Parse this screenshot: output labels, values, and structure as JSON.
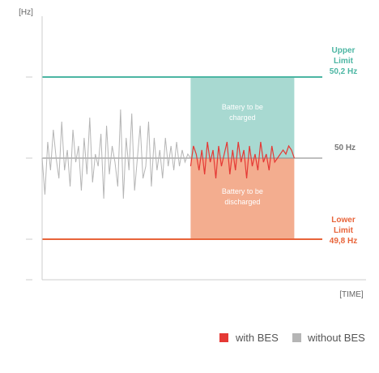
{
  "chart_data": {
    "type": "line",
    "ylabel": "[Hz]",
    "xlabel": "[TIME]",
    "ylim": [
      49.7,
      50.35
    ],
    "xlim": [
      0,
      100
    ],
    "reference_lines": {
      "upper": {
        "value": 50.2,
        "label_line1": "Upper",
        "label_line2": "Limit",
        "label_value": "50,2 Hz",
        "color": "#4cb6a3"
      },
      "nominal": {
        "value": 50.0,
        "label": "50 Hz",
        "color": "#999999"
      },
      "lower": {
        "value": 49.8,
        "label_line1": "Lower",
        "label_line2": "Limit",
        "label_value": "49,8 Hz",
        "color": "#e8643a"
      }
    },
    "bands": [
      {
        "name": "charge",
        "x_range": [
          53,
          90
        ],
        "y_range": [
          50.0,
          50.2
        ],
        "color": "#a8d9d1",
        "label_line1": "Battery to be",
        "label_line2": "charged"
      },
      {
        "name": "discharge",
        "x_range": [
          53,
          90
        ],
        "y_range": [
          49.8,
          50.0
        ],
        "color": "#f3ad8f",
        "label_line1": "Battery to be",
        "label_line2": "discharged"
      }
    ],
    "series": [
      {
        "name": "without BES",
        "color": "#b5b5b5",
        "x": [
          0,
          1,
          2,
          3,
          4,
          5,
          6,
          7,
          8,
          9,
          10,
          11,
          12,
          13,
          14,
          15,
          16,
          17,
          18,
          19,
          20,
          21,
          22,
          23,
          24,
          25,
          26,
          27,
          28,
          29,
          30,
          31,
          32,
          33,
          34,
          35,
          36,
          37,
          38,
          39,
          40,
          41,
          42,
          43,
          44,
          45,
          46,
          47,
          48,
          49,
          50,
          51,
          52,
          53
        ],
        "values": [
          50.0,
          49.91,
          50.04,
          49.97,
          50.07,
          50.0,
          49.95,
          50.09,
          49.97,
          50.02,
          49.93,
          50.07,
          49.99,
          50.03,
          49.92,
          50.05,
          49.96,
          50.1,
          49.94,
          50.01,
          49.98,
          50.06,
          49.9,
          50.08,
          49.96,
          50.03,
          49.99,
          49.93,
          50.12,
          49.9,
          50.05,
          49.97,
          50.11,
          49.92,
          50.0,
          50.08,
          49.95,
          49.98,
          50.09,
          49.93,
          50.05,
          49.97,
          50.02,
          49.95,
          50.05,
          49.98,
          50.03,
          49.97,
          50.04,
          49.98,
          50.02,
          49.99,
          50.01,
          50.0
        ]
      },
      {
        "name": "with BES",
        "color": "#e53935",
        "x": [
          53,
          54,
          55,
          56,
          57,
          58,
          59,
          60,
          61,
          62,
          63,
          64,
          65,
          66,
          67,
          68,
          69,
          70,
          71,
          72,
          73,
          74,
          75,
          76,
          77,
          78,
          79,
          80,
          81,
          82,
          83,
          84,
          85,
          86,
          87,
          88,
          89,
          90
        ],
        "values": [
          49.98,
          50.03,
          50.01,
          49.97,
          50.02,
          49.96,
          50.04,
          49.99,
          50.02,
          49.95,
          50.03,
          49.98,
          50.01,
          50.04,
          49.96,
          50.02,
          49.97,
          50.04,
          49.99,
          50.02,
          49.95,
          50.03,
          49.98,
          50.01,
          49.97,
          50.04,
          49.99,
          50.01,
          49.97,
          50.03,
          49.99,
          50.0,
          50.01,
          50.02,
          50.01,
          50.03,
          50.02,
          50.0
        ]
      }
    ],
    "legend": {
      "position": "bottom-right"
    }
  }
}
